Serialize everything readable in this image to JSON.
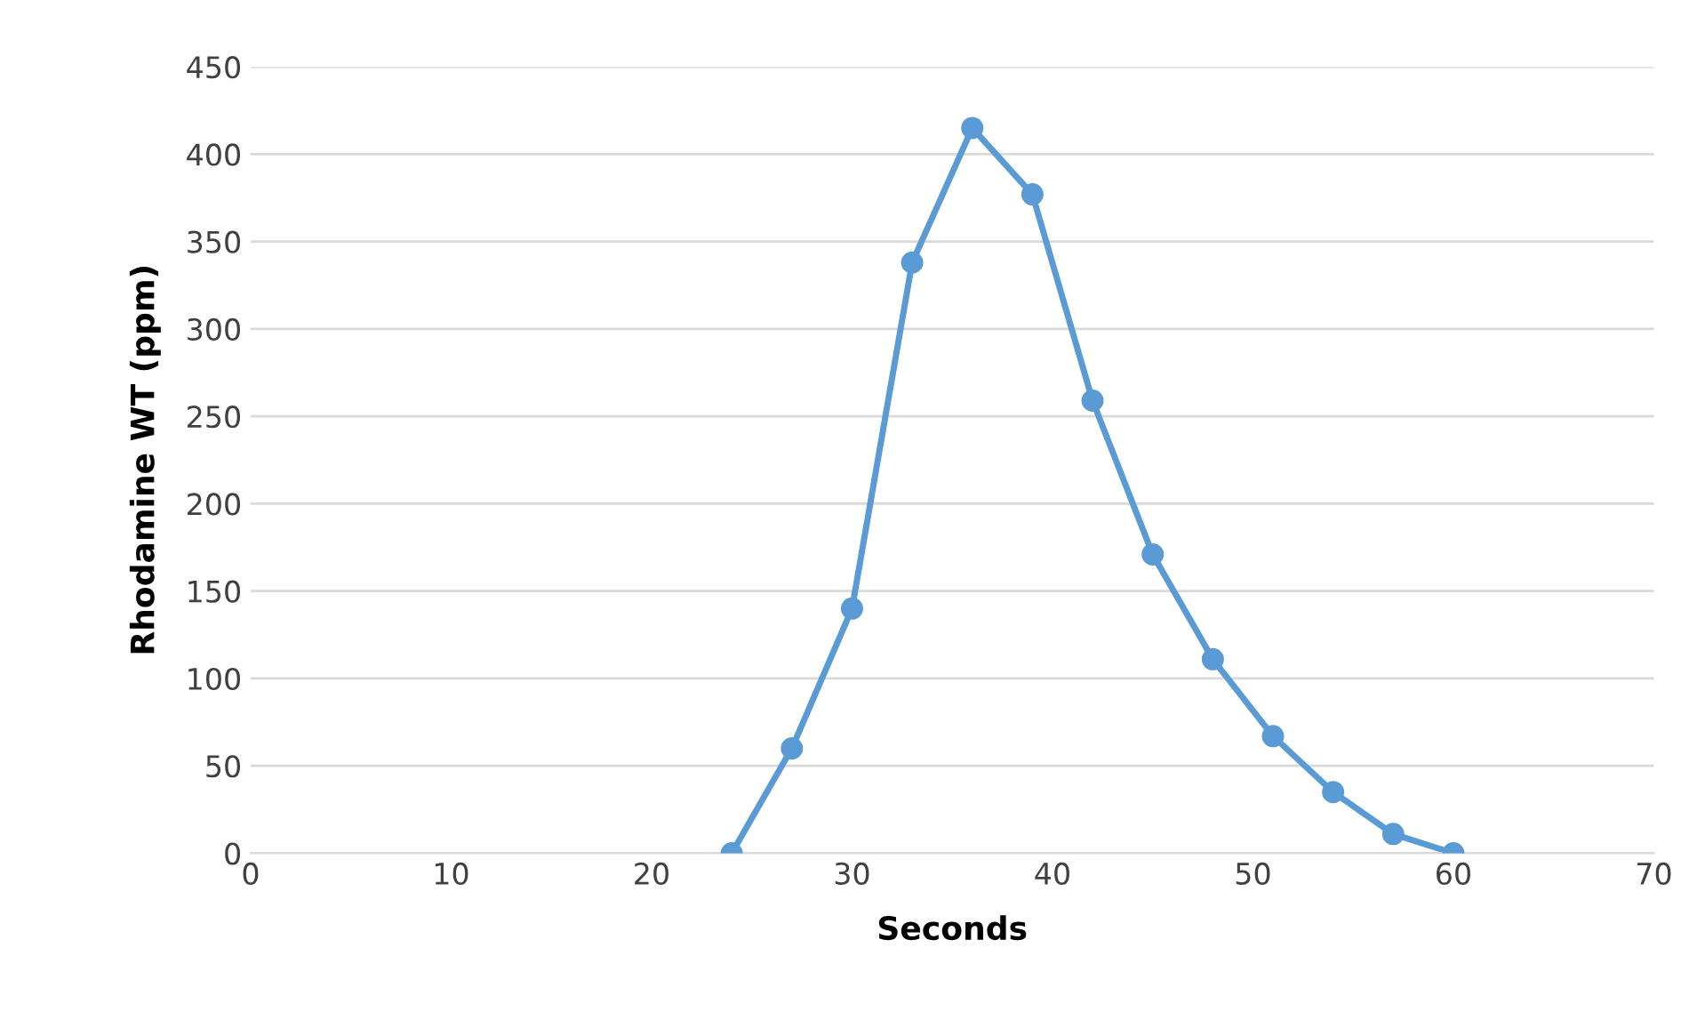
{
  "chart_data": {
    "type": "line",
    "xlabel": "Seconds",
    "ylabel": "Rhodamine WT (ppm)",
    "x": [
      24,
      27,
      30,
      33,
      36,
      39,
      42,
      45,
      48,
      51,
      54,
      57,
      60
    ],
    "series": [
      {
        "color": "#5b9bd5",
        "values": [
          0,
          60,
          140,
          338,
          415,
          377,
          259,
          171,
          111,
          67,
          35,
          11,
          0
        ]
      }
    ],
    "xlim": [
      0,
      70
    ],
    "xticks": [
      0,
      10,
      20,
      30,
      40,
      50,
      60,
      70
    ],
    "ylim": [
      0,
      450
    ],
    "yticks": [
      0,
      50,
      100,
      150,
      200,
      250,
      300,
      350,
      400,
      450
    ],
    "grid": "y",
    "marker": "circle",
    "line_style": "solid",
    "legend": false
  }
}
